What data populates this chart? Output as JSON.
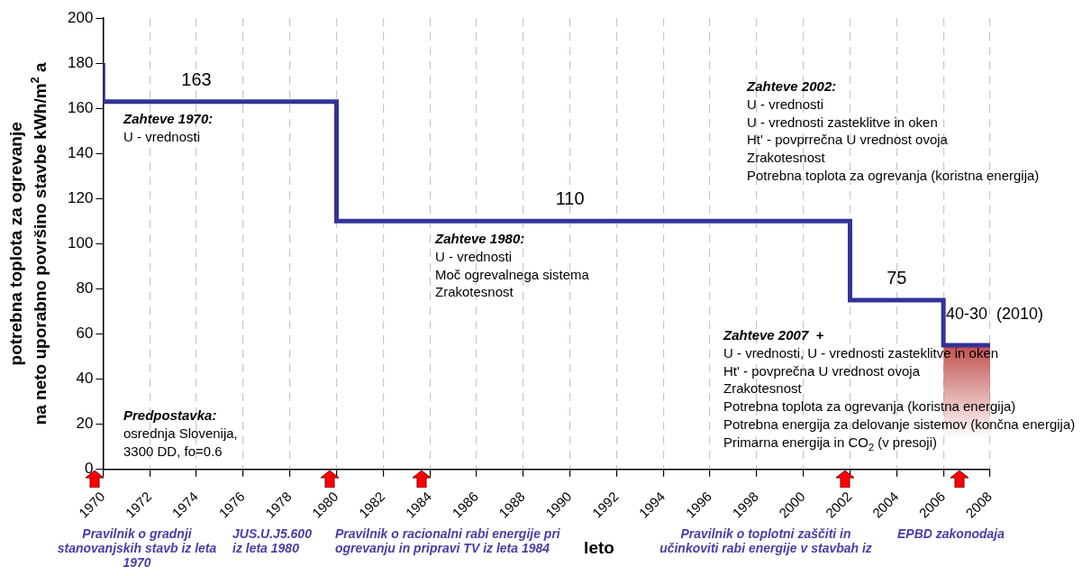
{
  "chart_data": {
    "type": "step",
    "ylabel": "potrebna toplota za ogrevanje\nna neto uporabno površino stavbe kWh/m$^{2}$ a",
    "xlabel": "leto",
    "xlim": [
      1970,
      2008
    ],
    "xticks": [
      1970,
      1972,
      1974,
      1976,
      1978,
      1980,
      1982,
      1984,
      1986,
      1988,
      1990,
      1992,
      1994,
      1996,
      1998,
      2000,
      2002,
      2004,
      2006,
      2008
    ],
    "ylim": [
      0,
      200
    ],
    "yticks": [
      0,
      20,
      40,
      60,
      80,
      100,
      120,
      140,
      160,
      180,
      200
    ],
    "grid": "x",
    "legend": false,
    "series": [
      {
        "color": "#333399",
        "x": [
          1970,
          1970,
          1980,
          2002,
          2006,
          2008
        ],
        "values": [
          180,
          163,
          110,
          75,
          55,
          55
        ]
      },
      {
        "type": "area",
        "color": "#c0504d",
        "x": [
          2006,
          2008
        ],
        "values": [
          55,
          55
        ]
      }
    ],
    "annotations": [
      "Zahteve 1970:\nU - vrednosti",
      "Predpostavka:\nosrednja Slovenija,\n3300 DD, fo=0.6",
      "Zahteve 1980:\nU - vrednosti\nMoč ogrevalnega sistema\nZrakotesnost",
      "Zahteve 2002:\nU - vrednosti\nU - vrednosti zasteklitve in oken\nHt' - povprrečna U vrednost ovoja\nZrakotesnost\nPotrebna toplota za ogrevanja (koristna energija)",
      "Zahteve 2007  +\nU - vrednosti, U - vrednosti zasteklitve in oken\nHt' - povprečna U vrednost ovoja\nZrakotesnost\nPotrebna toplota za ogrevanja (koristna energija)\nPotrebna energija za delovanje sistemov (končna energija)\nPrimarna energija in CO$_{2}$ (v presoji)",
      "40-30  (2010)",
      {
        "text": "163",
        "x": 1974,
        "y": 163
      },
      {
        "text": "110",
        "x": 1990,
        "y": 110
      },
      {
        "text": "75",
        "x": 2004,
        "y": 75
      },
      "Pravilnik o gradnji\nstanovanjskih stavb iz leta\n1970",
      "JUS.U.J5.600\niz leta 1980",
      "Pravilnik o racionalni rabi energije pri\nogrevanju in pripravi TV iz leta 1984",
      "Pravilnik o toplotni zaščiti in\nučinkoviti rabi energije v stavbah iz",
      "EPBD zakonodaja"
    ]
  }
}
